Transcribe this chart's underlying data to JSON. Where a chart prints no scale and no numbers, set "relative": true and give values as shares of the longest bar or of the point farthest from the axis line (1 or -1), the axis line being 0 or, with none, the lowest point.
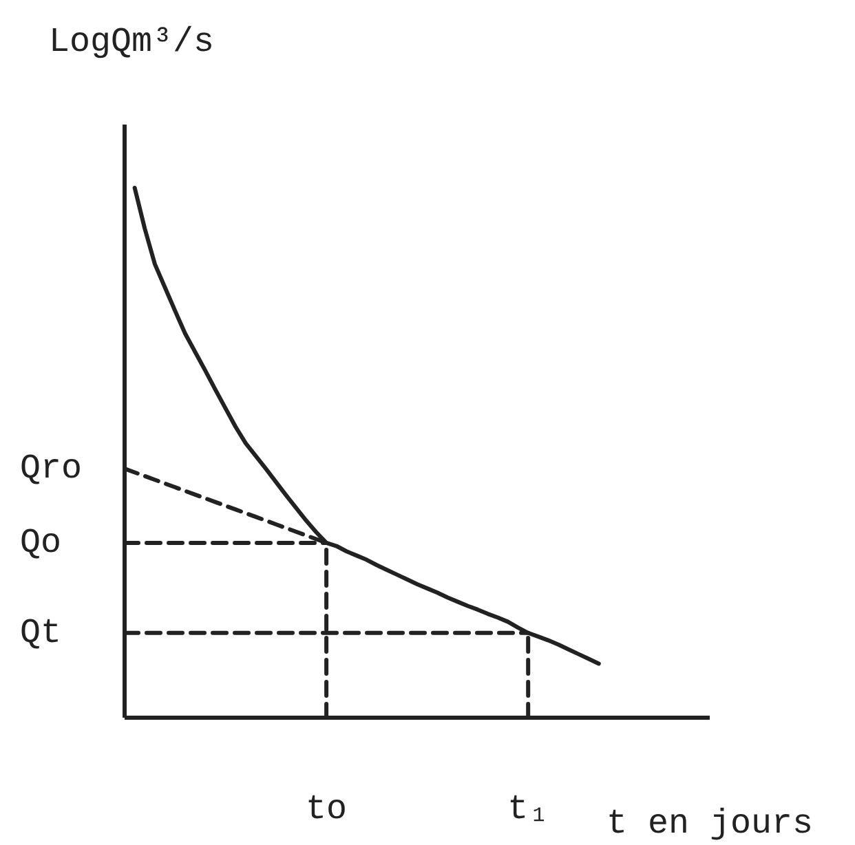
{
  "chart_data": {
    "type": "line",
    "xlabel": "t en jours",
    "ylabel": "LogQm³/s",
    "relative": true,
    "categories": [
      null,
      null,
      null,
      null,
      null,
      null,
      null,
      null,
      null,
      null,
      null,
      null,
      null,
      null,
      null,
      null,
      null,
      null,
      null,
      null,
      "to",
      null,
      null,
      null,
      null,
      null,
      null,
      null,
      null,
      null,
      null,
      null,
      null,
      null,
      null,
      null,
      null,
      null,
      null,
      null,
      "t₁",
      null,
      null,
      null,
      null,
      null,
      null,
      null,
      null,
      null,
      null,
      null,
      null,
      null,
      null,
      null,
      null,
      null,
      null
    ],
    "series": [
      {
        "color": "#222222",
        "line_style": "solid",
        "values": [
          null,
          1.0,
          0.923,
          0.856,
          0.812,
          0.768,
          0.725,
          0.69,
          0.655,
          0.619,
          0.584,
          0.549,
          0.518,
          0.494,
          0.47,
          0.445,
          0.42,
          0.396,
          0.372,
          0.35,
          0.33,
          0.324,
          0.314,
          0.306,
          0.298,
          0.288,
          0.279,
          0.27,
          0.261,
          0.252,
          0.244,
          0.236,
          0.227,
          0.219,
          0.211,
          0.204,
          0.196,
          0.189,
          0.181,
          0.17,
          0.16,
          0.153,
          0.146,
          0.138,
          0.129,
          0.12,
          0.111,
          0.102,
          null,
          null,
          null,
          null,
          null,
          null,
          null,
          null,
          null,
          null,
          null
        ]
      },
      {
        "name": "Qro",
        "color": "#222222",
        "line_style": "dashed",
        "values": [
          0.47,
          0.463,
          0.456,
          0.449,
          0.442,
          0.435,
          0.428,
          0.421,
          0.414,
          0.407,
          0.4,
          0.393,
          0.386,
          0.379,
          0.372,
          0.365,
          0.358,
          0.351,
          0.344,
          0.337,
          0.33,
          null,
          null,
          null,
          null,
          null,
          null,
          null,
          null,
          null,
          null,
          null,
          null,
          null,
          null,
          null,
          null,
          null,
          null,
          null,
          null,
          null,
          null,
          null,
          null,
          null,
          null,
          null,
          null,
          null,
          null,
          null,
          null,
          null,
          null,
          null,
          null,
          null,
          null
        ]
      },
      {
        "name": "Qo",
        "color": "#222222",
        "line_style": "dashed",
        "values": [
          0.33,
          0.33,
          0.33,
          0.33,
          0.33,
          0.33,
          0.33,
          0.33,
          0.33,
          0.33,
          0.33,
          0.33,
          0.33,
          0.33,
          0.33,
          0.33,
          0.33,
          0.33,
          0.33,
          0.33,
          0.33,
          null,
          null,
          null,
          null,
          null,
          null,
          null,
          null,
          null,
          null,
          null,
          null,
          null,
          null,
          null,
          null,
          null,
          null,
          null,
          null,
          null,
          null,
          null,
          null,
          null,
          null,
          null,
          null,
          null,
          null,
          null,
          null,
          null,
          null,
          null,
          null,
          null,
          null
        ]
      },
      {
        "name": "Qt",
        "color": "#222222",
        "line_style": "dashed",
        "values": [
          0.16,
          0.16,
          0.16,
          0.16,
          0.16,
          0.16,
          0.16,
          0.16,
          0.16,
          0.16,
          0.16,
          0.16,
          0.16,
          0.16,
          0.16,
          0.16,
          0.16,
          0.16,
          0.16,
          0.16,
          0.16,
          0.16,
          0.16,
          0.16,
          0.16,
          0.16,
          0.16,
          0.16,
          0.16,
          0.16,
          0.16,
          0.16,
          0.16,
          0.16,
          0.16,
          0.16,
          0.16,
          0.16,
          0.16,
          0.16,
          0.16,
          null,
          null,
          null,
          null,
          null,
          null,
          null,
          null,
          null,
          null,
          null,
          null,
          null,
          null,
          null,
          null,
          null,
          null
        ]
      },
      {
        "color": "#222222",
        "line_style": "dashed",
        "x": [
          "to",
          "to"
        ],
        "values": [
          0,
          0.33
        ]
      },
      {
        "color": "#222222",
        "line_style": "dashed",
        "x": [
          "t₁",
          "t₁"
        ],
        "values": [
          0,
          0.16
        ]
      }
    ]
  }
}
